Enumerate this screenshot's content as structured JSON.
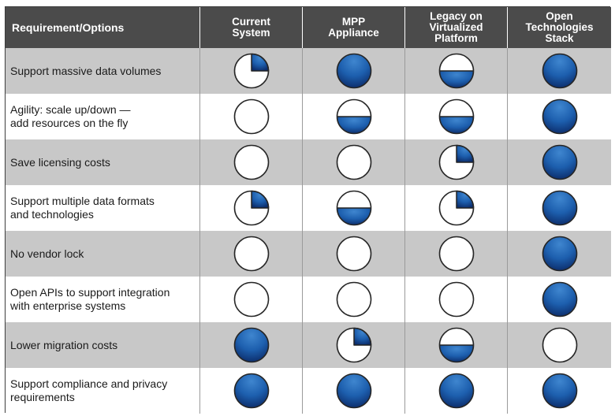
{
  "header": {
    "requirement": "Requirement/Options",
    "options": [
      "Current\nSystem",
      "MPP\nAppliance",
      "Legacy on\nVirtualized\nPlatform",
      "Open Technologies\nStack"
    ]
  },
  "fill_scale": "Harvey ball: 0 = empty, 0.25 = quarter, 0.5 = half, 1 = full",
  "colors": {
    "ball_dark": "#0d2f6e",
    "ball_mid": "#1d5fae",
    "ball_light": "#3f86cf",
    "header_bg": "#4b4b4b",
    "shaded_row": "#c8c8c8"
  },
  "rows": [
    {
      "label": "Support massive data volumes",
      "ratings": [
        0.25,
        1,
        0.5,
        1
      ]
    },
    {
      "label": "Agility: scale up/down —\nadd resources on the fly",
      "ratings": [
        0,
        0.5,
        0.5,
        1
      ]
    },
    {
      "label": "Save licensing costs",
      "ratings": [
        0,
        0,
        0.25,
        1
      ]
    },
    {
      "label": "Support multiple data formats\nand technologies",
      "ratings": [
        0.25,
        0.5,
        0.25,
        1
      ]
    },
    {
      "label": "No vendor lock",
      "ratings": [
        0,
        0,
        0,
        1
      ]
    },
    {
      "label": "Open APIs to support integration\nwith enterprise systems",
      "ratings": [
        0,
        0,
        0,
        1
      ]
    },
    {
      "label": "Lower migration costs",
      "ratings": [
        1,
        0.25,
        0.5,
        0
      ]
    },
    {
      "label": "Support compliance and privacy\nrequirements",
      "ratings": [
        1,
        1,
        1,
        1
      ]
    }
  ]
}
